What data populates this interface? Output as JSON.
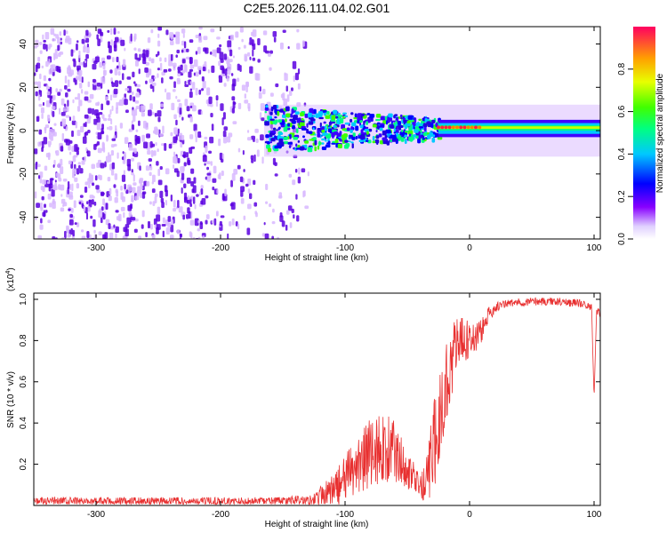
{
  "title": "C2E5.2026.111.04.02.G01",
  "colors": {
    "snr_line": "#e83030",
    "spectrum_dark": "#5a00e0",
    "spectrum_light": "#d8b8ff",
    "axis": "#000000"
  },
  "chart_data": [
    {
      "type": "heatmap",
      "title": "C2E5.2026.111.04.02.G01",
      "xlabel": "Height of straight line (km)",
      "ylabel": "Frequency (Hz)",
      "xlim": [
        -350,
        105
      ],
      "ylim": [
        -50,
        48
      ],
      "x_ticks": [
        -300,
        -200,
        -100,
        0,
        100
      ],
      "x_tick_labels": [
        "-300",
        "-200",
        "-100",
        "0",
        "100"
      ],
      "y_ticks": [
        -40,
        -20,
        0,
        20,
        40
      ],
      "y_tick_labels": [
        "-40",
        "-20",
        "0",
        "20",
        "40"
      ],
      "colorbar": {
        "label": "Normalized spectral amplitude",
        "range": [
          0.0,
          1.0
        ],
        "ticks": [
          0.0,
          0.2,
          0.4,
          0.6,
          0.8
        ],
        "tick_labels": [
          "0.0",
          "0.2",
          "0.4",
          "0.6",
          "0.8"
        ],
        "colormap": "rainbow"
      },
      "regions": [
        {
          "name": "noise-field",
          "x_range": [
            -350,
            -130
          ],
          "freq_range": [
            -50,
            48
          ],
          "amplitude": 0.1
        },
        {
          "name": "signal-onset",
          "x_range": [
            -165,
            -25
          ],
          "freq_range": [
            -12,
            12
          ],
          "amplitude": 0.45
        },
        {
          "name": "steady-carrier",
          "x_range": [
            -25,
            105
          ],
          "freq_range": [
            -3,
            5
          ],
          "amplitude": 0.6
        },
        {
          "name": "peak-line",
          "x_range": [
            -25,
            10
          ],
          "freq": 1.5,
          "amplitude": 0.95
        }
      ]
    },
    {
      "type": "line",
      "xlabel": "Height of straight line (km)",
      "ylabel": "SNR (10 * v/v)",
      "y_multiplier": "(x10",
      "y_multiplier_exp": "4",
      "y_multiplier_close": ")",
      "xlim": [
        -350,
        105
      ],
      "ylim": [
        0,
        1.03
      ],
      "x_ticks": [
        -300,
        -200,
        -100,
        0,
        100
      ],
      "x_tick_labels": [
        "-300",
        "-200",
        "-100",
        "0",
        "100"
      ],
      "y_ticks": [
        0.2,
        0.4,
        0.6,
        0.8,
        1.0
      ],
      "y_tick_labels": [
        "0.2",
        "0.4",
        "0.6",
        "0.8",
        "1.0"
      ],
      "series": [
        {
          "name": "SNR",
          "x": [
            -350,
            -300,
            -250,
            -200,
            -150,
            -125,
            -110,
            -100,
            -90,
            -80,
            -70,
            -60,
            -50,
            -40,
            -35,
            -30,
            -25,
            -20,
            -15,
            -10,
            -5,
            0,
            5,
            10,
            15,
            20,
            25,
            30,
            40,
            50,
            60,
            70,
            80,
            90,
            95,
            98,
            100,
            102,
            105
          ],
          "y": [
            0.02,
            0.02,
            0.02,
            0.02,
            0.02,
            0.03,
            0.07,
            0.12,
            0.2,
            0.25,
            0.28,
            0.26,
            0.18,
            0.09,
            0.1,
            0.25,
            0.4,
            0.55,
            0.7,
            0.78,
            0.8,
            0.8,
            0.82,
            0.85,
            0.92,
            0.96,
            0.97,
            0.98,
            0.985,
            0.99,
            0.99,
            0.99,
            0.985,
            0.98,
            0.97,
            0.96,
            0.52,
            0.95,
            0.93
          ],
          "noise": [
            0.02,
            0.02,
            0.02,
            0.02,
            0.02,
            0.03,
            0.08,
            0.12,
            0.16,
            0.18,
            0.18,
            0.15,
            0.1,
            0.05,
            0.12,
            0.2,
            0.25,
            0.22,
            0.18,
            0.14,
            0.12,
            0.1,
            0.08,
            0.06,
            0.04,
            0.03,
            0.02,
            0.02,
            0.02,
            0.02,
            0.02,
            0.02,
            0.02,
            0.02,
            0.02,
            0.02,
            0.0,
            0.02,
            0.02
          ]
        }
      ]
    }
  ]
}
